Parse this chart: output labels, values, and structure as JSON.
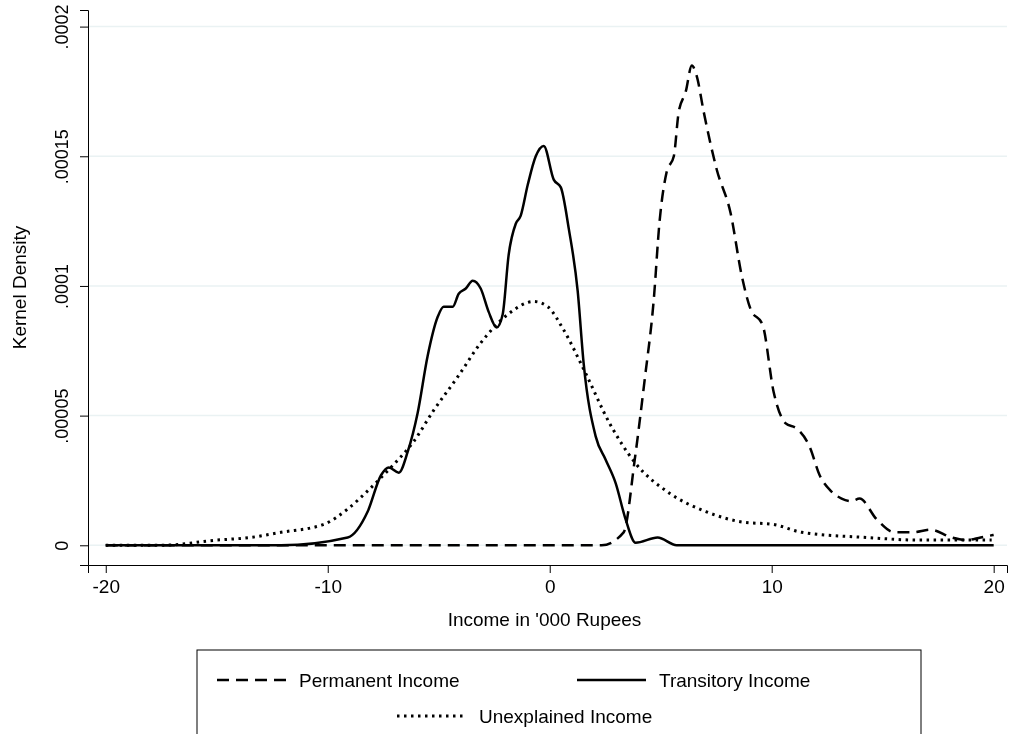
{
  "chart_data": {
    "type": "line",
    "xlabel": "Income in '000 Rupees",
    "ylabel": "Kernel Density",
    "xlim": [
      -20.8,
      20.6
    ],
    "xticks": [
      -20,
      -10,
      0,
      10,
      20
    ],
    "ylim": [
      -7.6e-06,
      0.0002064
    ],
    "yticks": [
      {
        "value": 0,
        "label": "0"
      },
      {
        "value": 5e-05,
        "label": ".00005"
      },
      {
        "value": 0.0001,
        "label": ".0001"
      },
      {
        "value": 0.00015,
        "label": ".00015"
      },
      {
        "value": 0.0002,
        "label": ".0002"
      }
    ],
    "grid": "y",
    "legend": "bottom",
    "marker": "none",
    "series": [
      {
        "name": "Permanent Income",
        "color": "#000000",
        "line_style": "dashed",
        "x": [
          -20,
          2.34,
          3.33,
          3.83,
          4.28,
          4.68,
          4.95,
          5.27,
          5.59,
          5.81,
          6.13,
          6.4,
          6.62,
          6.94,
          7.52,
          8.15,
          8.65,
          9.05,
          9.59,
          10.09,
          10.63,
          11.13,
          11.71,
          12.16,
          12.66,
          13.15,
          13.6,
          13.96,
          14.73,
          15.54,
          16.35,
          17.16,
          18.11,
          18.78,
          19.41,
          20
        ],
        "values": [
          0,
          0,
          5e-06,
          3.3e-05,
          6.4e-05,
          9.4e-05,
          0.000125,
          0.000144,
          0.00015,
          0.000167,
          0.000175,
          0.000185,
          0.000181,
          0.000167,
          0.000145,
          0.000128,
          0.000104,
          9.1e-05,
          8.5e-05,
          5.9e-05,
          4.7e-05,
          4.5e-05,
          3.8e-05,
          2.7e-05,
          2.1e-05,
          1.8e-05,
          1.7e-05,
          1.8e-05,
          1e-05,
          5e-06,
          5e-06,
          6e-06,
          3e-06,
          2e-06,
          3e-06,
          4e-06
        ]
      },
      {
        "name": "Transitory Income",
        "color": "#000000",
        "line_style": "solid",
        "x": [
          -20,
          -12.1,
          -9.1,
          -8.2,
          -7.6,
          -7.25,
          -6.8,
          -6.4,
          -5.95,
          -5.5,
          -5.05,
          -4.78,
          -4.37,
          -4.1,
          -3.78,
          -3.47,
          -3.11,
          -2.75,
          -2.39,
          -2.12,
          -1.85,
          -1.53,
          -1.31,
          -0.99,
          -0.63,
          -0.27,
          0.18,
          0.5,
          0.86,
          1.26,
          1.53,
          2.07,
          2.52,
          2.97,
          3.42,
          3.87,
          4.86,
          5.72,
          20
        ],
        "values": [
          0,
          0,
          3e-06,
          1.3e-05,
          2.7e-05,
          3e-05,
          2.8e-05,
          3.6e-05,
          5.1e-05,
          7.3e-05,
          8.8e-05,
          9.2e-05,
          9.2e-05,
          9.7e-05,
          9.9e-05,
          0.000102,
          9.9e-05,
          9e-05,
          8.4e-05,
          8.9e-05,
          0.000112,
          0.000124,
          0.000127,
          0.000139,
          0.00015,
          0.000154,
          0.000141,
          0.000138,
          0.000122,
          9.8e-05,
          7e-05,
          4.2e-05,
          3.3e-05,
          2.4e-05,
          1e-05,
          1e-06,
          3e-06,
          0,
          0
        ]
      },
      {
        "name": "Unexplained Income",
        "color": "#000000",
        "line_style": "dotted",
        "x": [
          -20,
          -17.5,
          -15,
          -13.5,
          -12.1,
          -10.2,
          -9.1,
          -8.2,
          -7.16,
          -6.13,
          -5.23,
          -4.14,
          -3.11,
          -1.89,
          -0.72,
          -0.09,
          0.63,
          1.58,
          2.7,
          3.83,
          5.41,
          7.03,
          8.65,
          10.09,
          11.35,
          14.28,
          16.67,
          19.91
        ],
        "values": [
          0,
          0,
          2e-06,
          3e-06,
          5e-06,
          8e-06,
          1.4e-05,
          2.1e-05,
          3e-05,
          4e-05,
          5.2e-05,
          6.5e-05,
          7.8e-05,
          8.9e-05,
          9.4e-05,
          9.2e-05,
          8.3e-05,
          6.7e-05,
          4.7e-05,
          3.2e-05,
          2e-05,
          1.3e-05,
          9e-06,
          8e-06,
          5e-06,
          3e-06,
          2e-06,
          2e-06
        ]
      }
    ]
  }
}
